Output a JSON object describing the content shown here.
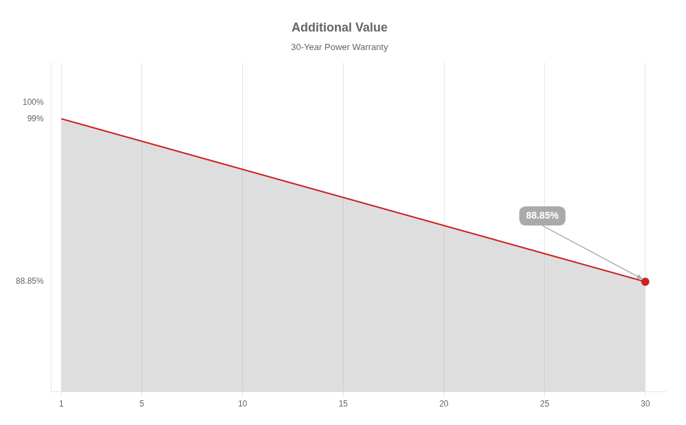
{
  "chart_data": {
    "type": "line",
    "title": "Additional Value",
    "subtitle": "30-Year Power Warranty",
    "x": [
      1,
      30
    ],
    "values": [
      99,
      88.85
    ],
    "color": "#cc2222",
    "xlim": [
      0.5,
      31
    ],
    "ylim": [
      82,
      102.5
    ],
    "xticks": [
      1,
      5,
      10,
      15,
      20,
      25,
      30
    ],
    "yticks": [
      {
        "value": 88.85,
        "label": "88.85%"
      },
      {
        "value": 99,
        "label": "99%"
      },
      {
        "value": 100,
        "label": "100%"
      }
    ],
    "grid": "x",
    "annotations": [
      {
        "text": "88.85%",
        "x": 30,
        "y": 88.85
      }
    ]
  }
}
